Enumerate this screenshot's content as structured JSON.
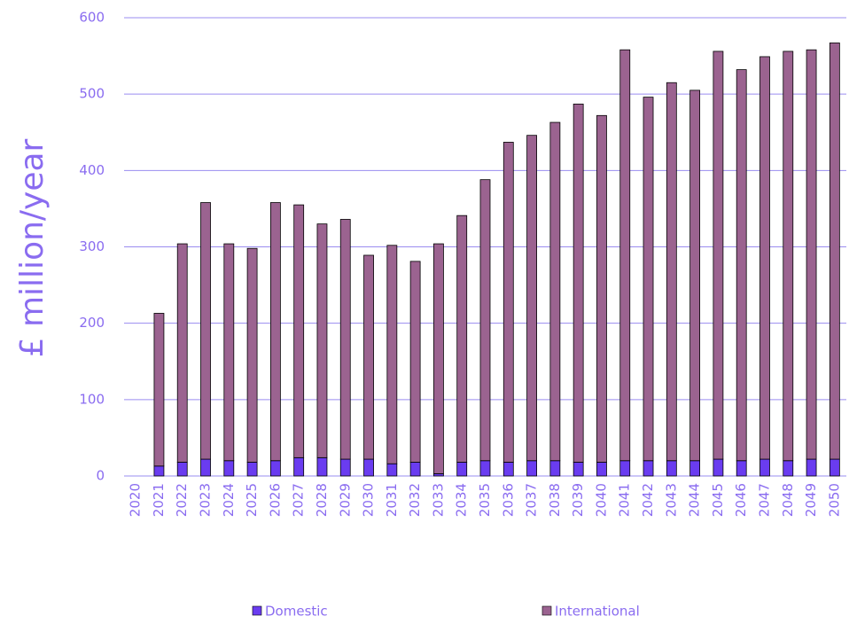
{
  "chart_data": {
    "type": "stacked_bar",
    "y_label": "£ million/year",
    "categories": [
      "2020",
      "2021",
      "2022",
      "2023",
      "2024",
      "2025",
      "2026",
      "2027",
      "2028",
      "2029",
      "2030",
      "2031",
      "2032",
      "2033",
      "2034",
      "2035",
      "2036",
      "2037",
      "2038",
      "2039",
      "2040",
      "2041",
      "2042",
      "2043",
      "2044",
      "2045",
      "2046",
      "2047",
      "2048",
      "2049",
      "2050"
    ],
    "series": [
      {
        "name": "Domestic",
        "color": "#6a3cf0",
        "values": [
          null,
          13,
          18,
          22,
          20,
          18,
          20,
          24,
          24,
          22,
          22,
          16,
          18,
          3,
          18,
          20,
          18,
          20,
          20,
          18,
          18,
          20,
          20,
          20,
          20,
          22,
          20,
          22,
          20,
          22,
          22
        ]
      },
      {
        "name": "International",
        "color": "#9b6390",
        "values": [
          null,
          200,
          286,
          336,
          284,
          280,
          338,
          331,
          306,
          314,
          267,
          286,
          263,
          301,
          323,
          368,
          419,
          426,
          443,
          469,
          454,
          538,
          476,
          495,
          485,
          534,
          512,
          527,
          536,
          536,
          545
        ]
      }
    ],
    "ylim": [
      0,
      600
    ],
    "yticks": [
      0,
      100,
      200,
      300,
      400,
      500,
      600
    ],
    "grid": true,
    "legend": "bottom"
  }
}
